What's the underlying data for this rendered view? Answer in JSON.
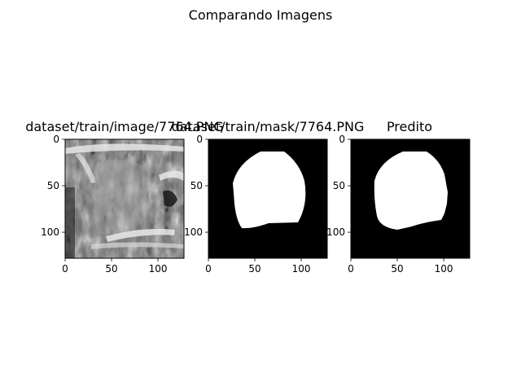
{
  "figure": {
    "suptitle": "Comparando Imagens"
  },
  "chart_data": [
    {
      "type": "image",
      "title": "dataset/train/image/7764.PNG",
      "content": "grayscale ultrasound image",
      "xlim": [
        0,
        128
      ],
      "ylim": [
        128,
        0
      ],
      "xticks": [
        0,
        50,
        100
      ],
      "yticks": [
        0,
        50,
        100
      ],
      "grid": false
    },
    {
      "type": "image",
      "title": "dataset/train/mask/7764.PNG",
      "content": "binary mask: white blob on black background",
      "xlim": [
        0,
        128
      ],
      "ylim": [
        128,
        0
      ],
      "xticks": [
        0,
        50,
        100
      ],
      "yticks": [
        0,
        50,
        100
      ],
      "grid": false
    },
    {
      "type": "image",
      "title": "Predito",
      "content": "binary mask: white blob on black background",
      "xlim": [
        0,
        128
      ],
      "ylim": [
        128,
        0
      ],
      "xticks": [
        0,
        50,
        100
      ],
      "yticks": [
        0,
        50,
        100
      ],
      "grid": false
    }
  ]
}
